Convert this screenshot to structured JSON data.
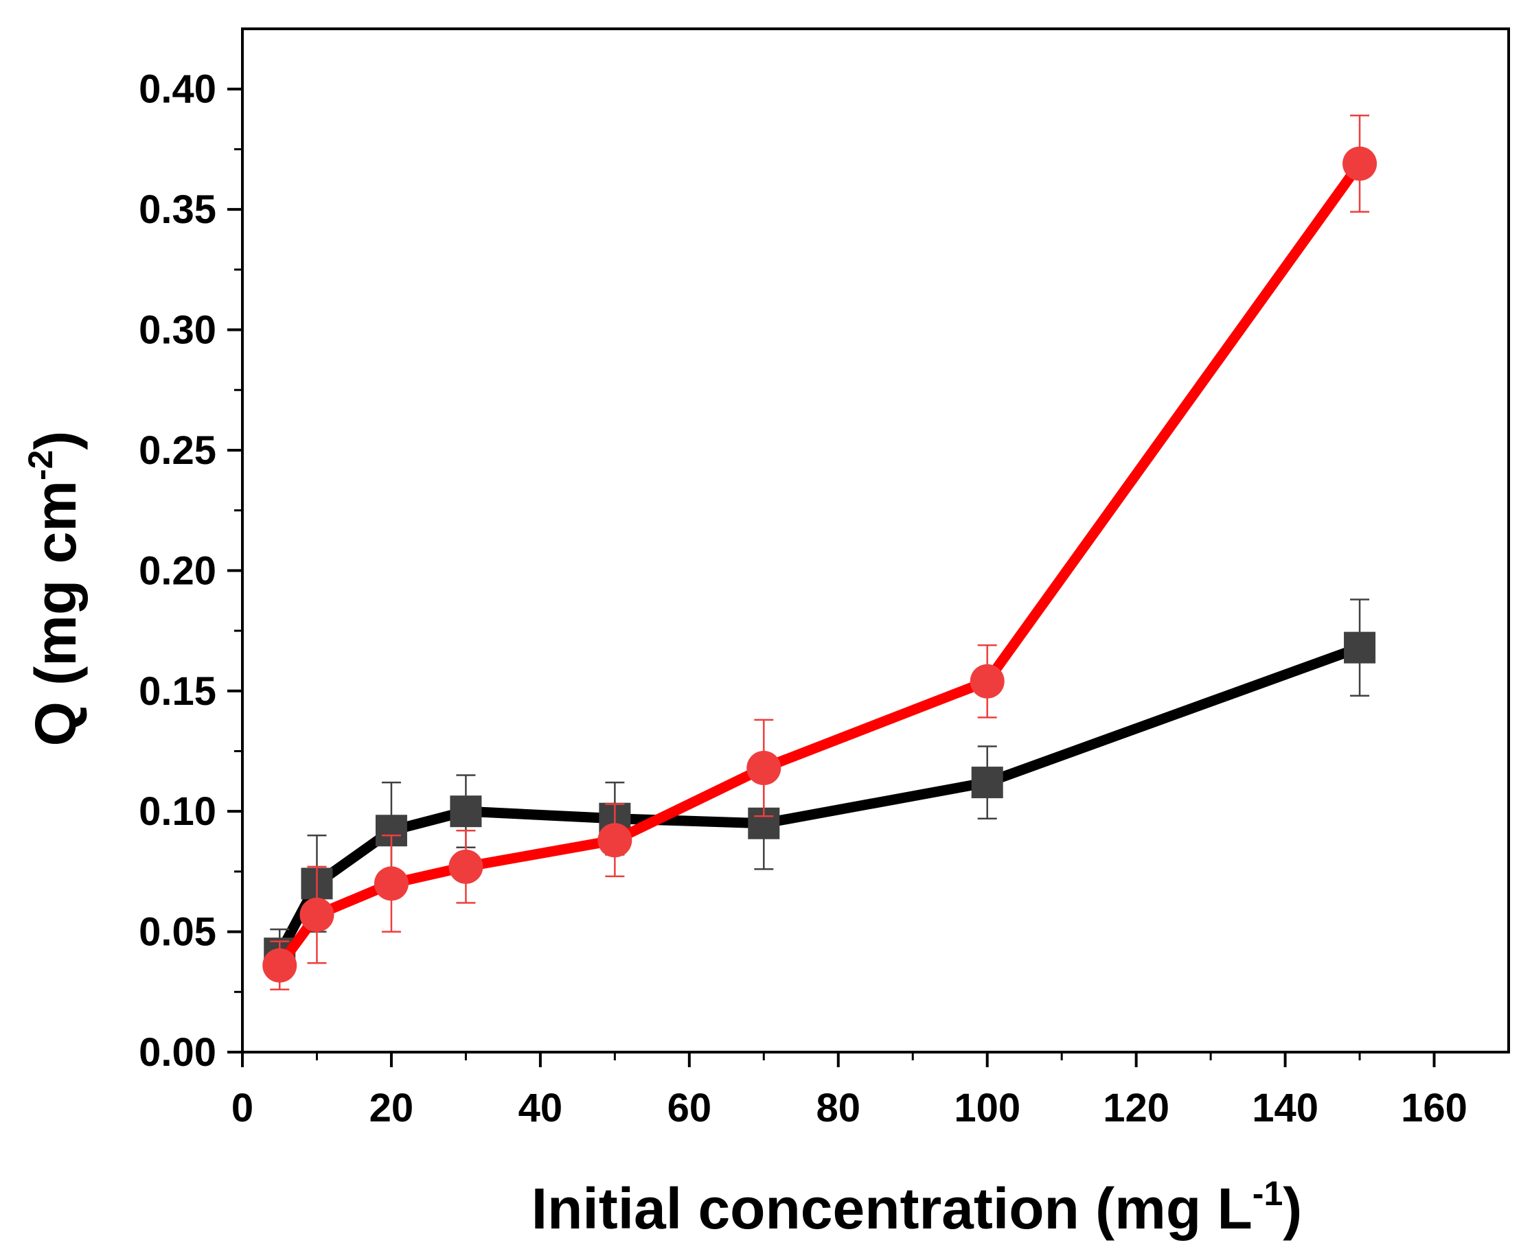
{
  "chart_data": {
    "type": "line",
    "title": "",
    "xlabel": {
      "text": "Initial concentration (mg L",
      "sup": "-1",
      "suffix": ")"
    },
    "ylabel": {
      "text": "Q (mg cm",
      "sup": "-2",
      "suffix": ")"
    },
    "xlim": [
      0,
      170
    ],
    "ylim": [
      0,
      0.425
    ],
    "xticks": [
      0,
      20,
      40,
      60,
      80,
      100,
      120,
      140,
      160
    ],
    "xtick_labels": [
      "0",
      "20",
      "40",
      "60",
      "80",
      "100",
      "120",
      "140",
      "160"
    ],
    "yticks": [
      0,
      0.05,
      0.1,
      0.15,
      0.2,
      0.25,
      0.3,
      0.35,
      0.4
    ],
    "ytick_labels": [
      "0.00",
      "0.05",
      "0.10",
      "0.15",
      "0.20",
      "0.25",
      "0.30",
      "0.35",
      "0.40"
    ],
    "x_minor_step": 10,
    "y_minor_step": 0.025,
    "grid": false,
    "legend": null,
    "series": [
      {
        "name": "series-black-squares",
        "marker": "square",
        "line_color": "#000000",
        "marker_color": "#404040",
        "error_color": "#404040",
        "x": [
          5,
          10,
          20,
          30,
          50,
          70,
          100,
          150
        ],
        "y": [
          0.041,
          0.07,
          0.092,
          0.1,
          0.097,
          0.095,
          0.112,
          0.168
        ],
        "err": [
          0.01,
          0.02,
          0.02,
          0.015,
          0.015,
          0.019,
          0.015,
          0.02
        ]
      },
      {
        "name": "series-red-circles",
        "marker": "circle",
        "line_color": "#ff0000",
        "marker_color": "#ef3d3d",
        "error_color": "#ef3d3d",
        "x": [
          5,
          10,
          20,
          30,
          50,
          70,
          100,
          150
        ],
        "y": [
          0.036,
          0.057,
          0.07,
          0.077,
          0.088,
          0.118,
          0.154,
          0.369
        ],
        "err": [
          0.01,
          0.02,
          0.02,
          0.015,
          0.015,
          0.02,
          0.015,
          0.02
        ]
      }
    ]
  }
}
